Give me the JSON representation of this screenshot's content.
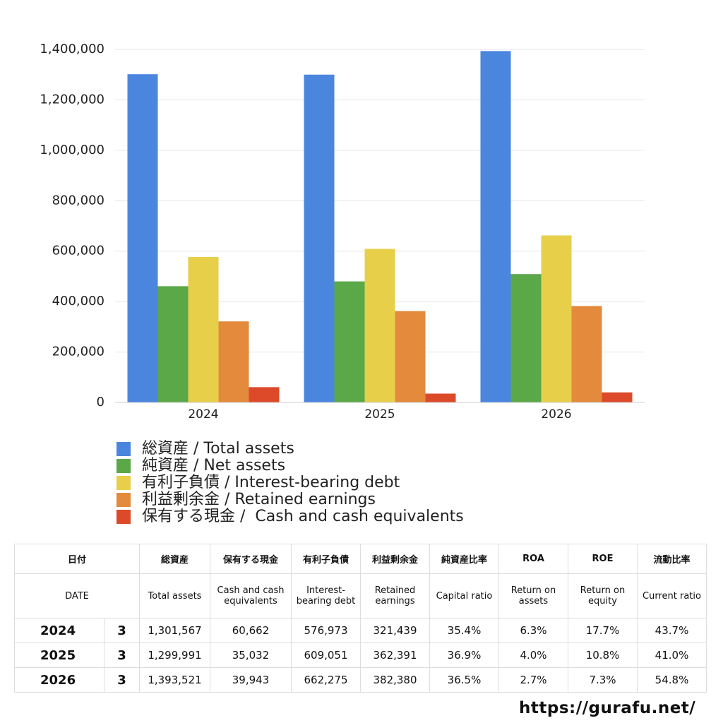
{
  "chart_data": {
    "type": "bar",
    "categories": [
      "2024",
      "2025",
      "2026"
    ],
    "series": [
      {
        "name": "総資産 / Total assets",
        "color": "#4a86de",
        "values": [
          1301567,
          1299991,
          1393521
        ]
      },
      {
        "name": "純資産 / Net assets",
        "color": "#5aa848",
        "values": [
          461000,
          480000,
          509000
        ]
      },
      {
        "name": "有利子負債 / Interest-bearing debt",
        "color": "#e8cf4a",
        "values": [
          576973,
          609051,
          662275
        ]
      },
      {
        "name": "利益剰余金 / Retained earnings",
        "color": "#e38a3c",
        "values": [
          321439,
          362391,
          382380
        ]
      },
      {
        "name": "保有する現金 /  Cash and cash equivalents",
        "color": "#dc4a2a",
        "values": [
          60662,
          35032,
          39943
        ]
      }
    ],
    "ylim": [
      0,
      1400000
    ],
    "yticks": [
      0,
      {
        "value": 200000,
        "label": "200,000"
      },
      {
        "value": 400000,
        "label": "400,000"
      },
      {
        "value": 600000,
        "label": "600,000"
      },
      {
        "value": 800000,
        "label": "800,000"
      },
      {
        "value": 1000000,
        "label": "1,000,000"
      },
      {
        "value": 1200000,
        "label": "1,200,000"
      },
      {
        "value": 1400000,
        "label": "1,400,000"
      }
    ],
    "grid": true
  },
  "table": {
    "header_ja": [
      "日付",
      "総資産",
      "保有する現金",
      "有利子負債",
      "利益剰余金",
      "純資産比率",
      "ROA",
      "ROE",
      "流動比率"
    ],
    "header_en": [
      "DATE",
      "Total assets",
      "Cash and cash equivalents",
      "Interest-bearing debt",
      "Retained earnings",
      "Capital ratio",
      "Return on assets",
      "Return on equity",
      "Current ratio"
    ],
    "rows": [
      [
        "2024",
        "3",
        "1,301,567",
        "60,662",
        "576,973",
        "321,439",
        "35.4%",
        "6.3%",
        "17.7%",
        "43.7%"
      ],
      [
        "2025",
        "3",
        "1,299,991",
        "35,032",
        "609,051",
        "362,391",
        "36.9%",
        "4.0%",
        "10.8%",
        "41.0%"
      ],
      [
        "2026",
        "3",
        "1,393,521",
        "39,943",
        "662,275",
        "382,380",
        "36.5%",
        "2.7%",
        "7.3%",
        "54.8%"
      ]
    ]
  },
  "footer": "https://gurafu.net/"
}
